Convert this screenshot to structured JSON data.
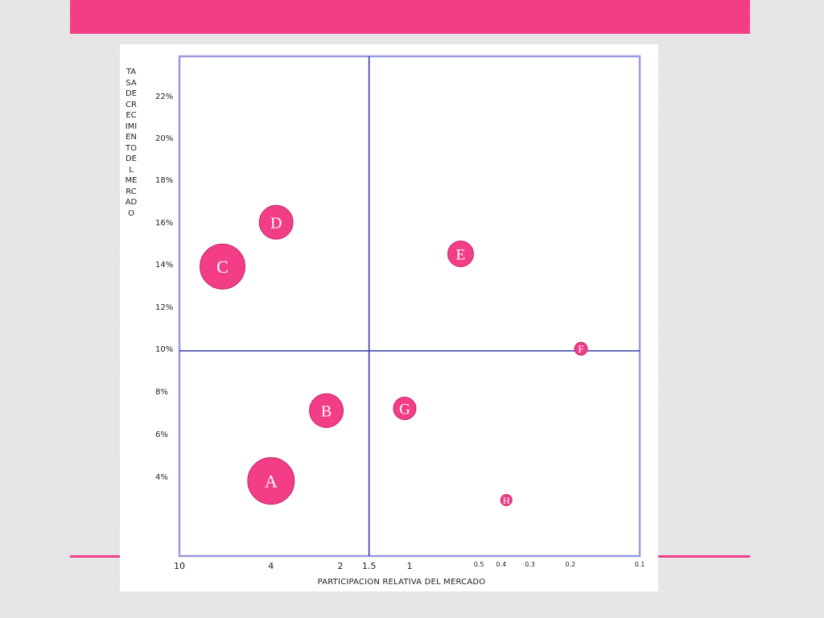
{
  "colors": {
    "accent": "#f43d87",
    "bubble": "#f43d87",
    "axis": "#3a3aa8",
    "frame": "#9999dd"
  },
  "chart_data": {
    "type": "scatter",
    "xlabel": "PARTICIPACION RELATIVA DEL MERCADO",
    "ylabel": "TASA DE CRECIMIENTO DEL MERCADO",
    "x_scale": "log-reversed",
    "xlim": [
      10,
      0.1
    ],
    "ylim": [
      2,
      24
    ],
    "x_ticks": [
      "10",
      "4",
      "2",
      "1.5",
      "1",
      "0.5",
      "0.4",
      "0.3",
      "0.2",
      "0.1"
    ],
    "y_ticks": [
      "22%",
      "20%",
      "18%",
      "16%",
      "14%",
      "12%",
      "10%",
      "8%",
      "6%",
      "4%"
    ],
    "dividers": {
      "x": 1.5,
      "y": 10
    },
    "points": [
      {
        "label": "A",
        "x": 4,
        "y": 3.9
      },
      {
        "label": "B",
        "x": 2.3,
        "y": 7.2
      },
      {
        "label": "C",
        "x": 6.5,
        "y": 14
      },
      {
        "label": "D",
        "x": 3.8,
        "y": 16.1
      },
      {
        "label": "E",
        "x": 0.6,
        "y": 14.6
      },
      {
        "label": "F",
        "x": 0.18,
        "y": 10.1
      },
      {
        "label": "G",
        "x": 1.05,
        "y": 7.3
      },
      {
        "label": "H",
        "x": 0.38,
        "y": 3
      }
    ]
  }
}
